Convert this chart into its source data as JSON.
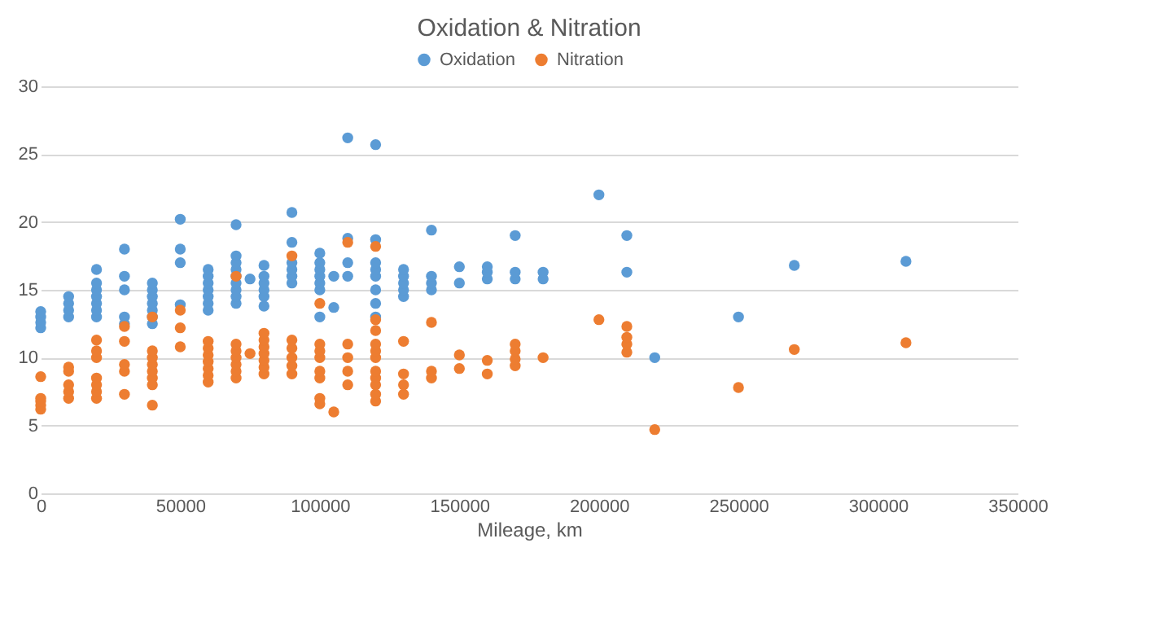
{
  "chart_data": {
    "type": "scatter",
    "title": "Oxidation & Nitration",
    "xlabel": "Mileage, km",
    "xlim": [
      0,
      350000
    ],
    "xticks": [
      0,
      50000,
      100000,
      150000,
      200000,
      250000,
      300000,
      350000
    ],
    "ylim": [
      0,
      30
    ],
    "yticks": [
      0,
      5,
      10,
      15,
      20,
      25,
      30
    ],
    "grid": "y",
    "legend": "top",
    "marker": "circle",
    "series": [
      {
        "name": "Oxidation",
        "color": "#5b9bd5",
        "x": [
          0,
          0,
          0,
          0,
          10000,
          10000,
          10000,
          10000,
          20000,
          20000,
          20000,
          20000,
          20000,
          20000,
          20000,
          30000,
          30000,
          30000,
          30000,
          30000,
          40000,
          40000,
          40000,
          40000,
          40000,
          40000,
          40000,
          50000,
          50000,
          50000,
          50000,
          60000,
          60000,
          60000,
          60000,
          60000,
          60000,
          60000,
          70000,
          70000,
          70000,
          70000,
          70000,
          70000,
          70000,
          70000,
          70000,
          75000,
          80000,
          80000,
          80000,
          80000,
          80000,
          80000,
          90000,
          90000,
          90000,
          90000,
          90000,
          90000,
          100000,
          100000,
          100000,
          100000,
          100000,
          100000,
          100000,
          105000,
          105000,
          110000,
          110000,
          110000,
          110000,
          120000,
          120000,
          120000,
          120000,
          120000,
          120000,
          120000,
          120000,
          130000,
          130000,
          130000,
          130000,
          130000,
          140000,
          140000,
          140000,
          140000,
          150000,
          150000,
          160000,
          160000,
          160000,
          170000,
          170000,
          170000,
          180000,
          180000,
          200000,
          210000,
          210000,
          220000,
          250000,
          270000,
          310000
        ],
        "values": [
          12.2,
          12.6,
          13,
          13.4,
          13,
          13.5,
          14,
          14.5,
          13,
          13.5,
          14,
          14.5,
          15,
          15.5,
          16.5,
          12.5,
          13,
          15,
          16,
          18,
          12.5,
          13,
          13.5,
          14,
          14.5,
          15,
          15.5,
          13.9,
          17,
          18,
          20.2,
          13.5,
          14,
          14.5,
          15,
          15.5,
          16,
          16.5,
          14,
          14.5,
          15,
          15.5,
          16,
          16.5,
          17,
          17.5,
          19.8,
          15.8,
          13.8,
          14.5,
          15,
          15.5,
          16,
          16.8,
          15.5,
          16,
          16.5,
          17,
          18.5,
          20.7,
          13,
          15,
          15.5,
          16,
          16.5,
          17,
          17.7,
          13.7,
          16,
          16,
          17,
          18.8,
          26.2,
          13,
          14,
          15,
          16,
          16.5,
          17,
          18.7,
          25.7,
          14.5,
          15,
          15.5,
          16,
          16.5,
          15,
          15.5,
          16,
          19.4,
          15.5,
          16.7,
          15.8,
          16.3,
          16.7,
          15.8,
          16.3,
          19,
          15.8,
          16.3,
          22,
          16.3,
          19,
          10,
          13,
          16.8,
          17.1
        ]
      },
      {
        "name": "Nitration",
        "color": "#ed7d31",
        "x": [
          0,
          0,
          0,
          0,
          0,
          10000,
          10000,
          10000,
          10000,
          10000,
          20000,
          20000,
          20000,
          20000,
          20000,
          20000,
          20000,
          30000,
          30000,
          30000,
          30000,
          30000,
          40000,
          40000,
          40000,
          40000,
          40000,
          40000,
          40000,
          40000,
          50000,
          50000,
          50000,
          60000,
          60000,
          60000,
          60000,
          60000,
          60000,
          60000,
          70000,
          70000,
          70000,
          70000,
          70000,
          70000,
          70000,
          75000,
          80000,
          80000,
          80000,
          80000,
          80000,
          80000,
          80000,
          90000,
          90000,
          90000,
          90000,
          90000,
          90000,
          100000,
          100000,
          100000,
          100000,
          100000,
          100000,
          100000,
          100000,
          105000,
          110000,
          110000,
          110000,
          110000,
          110000,
          120000,
          120000,
          120000,
          120000,
          120000,
          120000,
          120000,
          120000,
          120000,
          120000,
          120000,
          130000,
          130000,
          130000,
          130000,
          140000,
          140000,
          140000,
          150000,
          150000,
          160000,
          160000,
          170000,
          170000,
          170000,
          170000,
          180000,
          200000,
          210000,
          210000,
          210000,
          210000,
          220000,
          250000,
          270000,
          310000
        ],
        "values": [
          6.2,
          6.5,
          6.8,
          7,
          8.6,
          7,
          7.5,
          8,
          9,
          9.3,
          7,
          7.5,
          8,
          8.5,
          10,
          10.5,
          11.3,
          7.3,
          9,
          9.5,
          11.2,
          12.3,
          6.5,
          8,
          8.5,
          9,
          9.5,
          10,
          10.5,
          13,
          10.8,
          12.2,
          13.5,
          8.2,
          8.7,
          9.2,
          9.7,
          10.2,
          10.7,
          11.2,
          8.5,
          9,
          9.5,
          10,
          10.5,
          11,
          16,
          10.3,
          8.8,
          9.3,
          9.8,
          10.3,
          10.8,
          11.3,
          11.8,
          8.8,
          9.4,
          10,
          10.7,
          11.3,
          17.5,
          6.6,
          7,
          8.5,
          9,
          10,
          10.5,
          11,
          14,
          6,
          8,
          9,
          10,
          11,
          18.5,
          6.8,
          7.3,
          8,
          8.5,
          9,
          10,
          10.5,
          11,
          12,
          12.8,
          18.2,
          7.3,
          8,
          8.8,
          11.2,
          8.5,
          9,
          12.6,
          9.2,
          10.2,
          8.8,
          9.8,
          9.4,
          9.9,
          10.5,
          11,
          10,
          12.8,
          10.4,
          11,
          11.5,
          12.3,
          4.7,
          7.8,
          10.6,
          11.1
        ]
      }
    ]
  }
}
